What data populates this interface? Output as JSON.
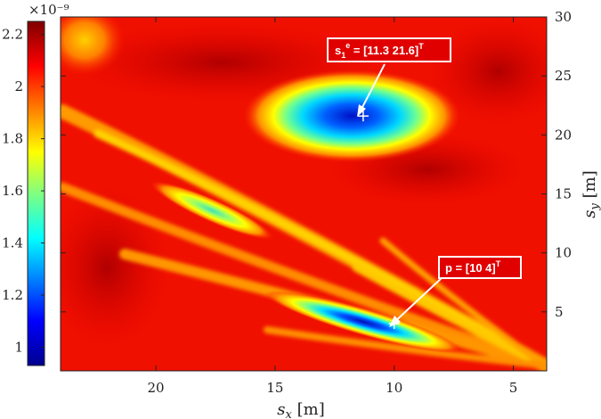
{
  "chart_data": {
    "type": "heatmap",
    "colorbar": {
      "exponent_label": "×10⁻⁹",
      "range": [
        0.93,
        2.25
      ],
      "ticks": [
        "2.2",
        "2",
        "1.8",
        "1.6",
        "1.4",
        "1.2",
        "1"
      ],
      "tick_values": [
        2.2,
        2.0,
        1.8,
        1.6,
        1.4,
        1.2,
        1.0
      ],
      "colormap": "jet"
    },
    "xaxis": {
      "label": "s_x [m]",
      "reversed": true,
      "range": [
        24,
        3.6
      ],
      "ticks": [
        "20",
        "15",
        "10",
        "5"
      ],
      "tick_values": [
        20,
        15,
        10,
        5
      ]
    },
    "yaxis": {
      "label": "s_y [m]",
      "position": "right",
      "range": [
        0,
        30
      ],
      "ticks": [
        "30",
        "25",
        "20",
        "15",
        "10",
        "5"
      ],
      "tick_values": [
        30,
        25,
        20,
        15,
        10,
        5
      ]
    },
    "markers": [
      {
        "x": 11.3,
        "y": 21.6
      },
      {
        "x": 10,
        "y": 4
      }
    ],
    "annotations": [
      {
        "text": "s₁ᵉ = [11.3  21.6]ᵀ",
        "points_to": [
          11.3,
          21.6
        ]
      },
      {
        "text": "p = [10 4]ᵀ",
        "points_to": [
          10,
          4
        ]
      }
    ]
  }
}
